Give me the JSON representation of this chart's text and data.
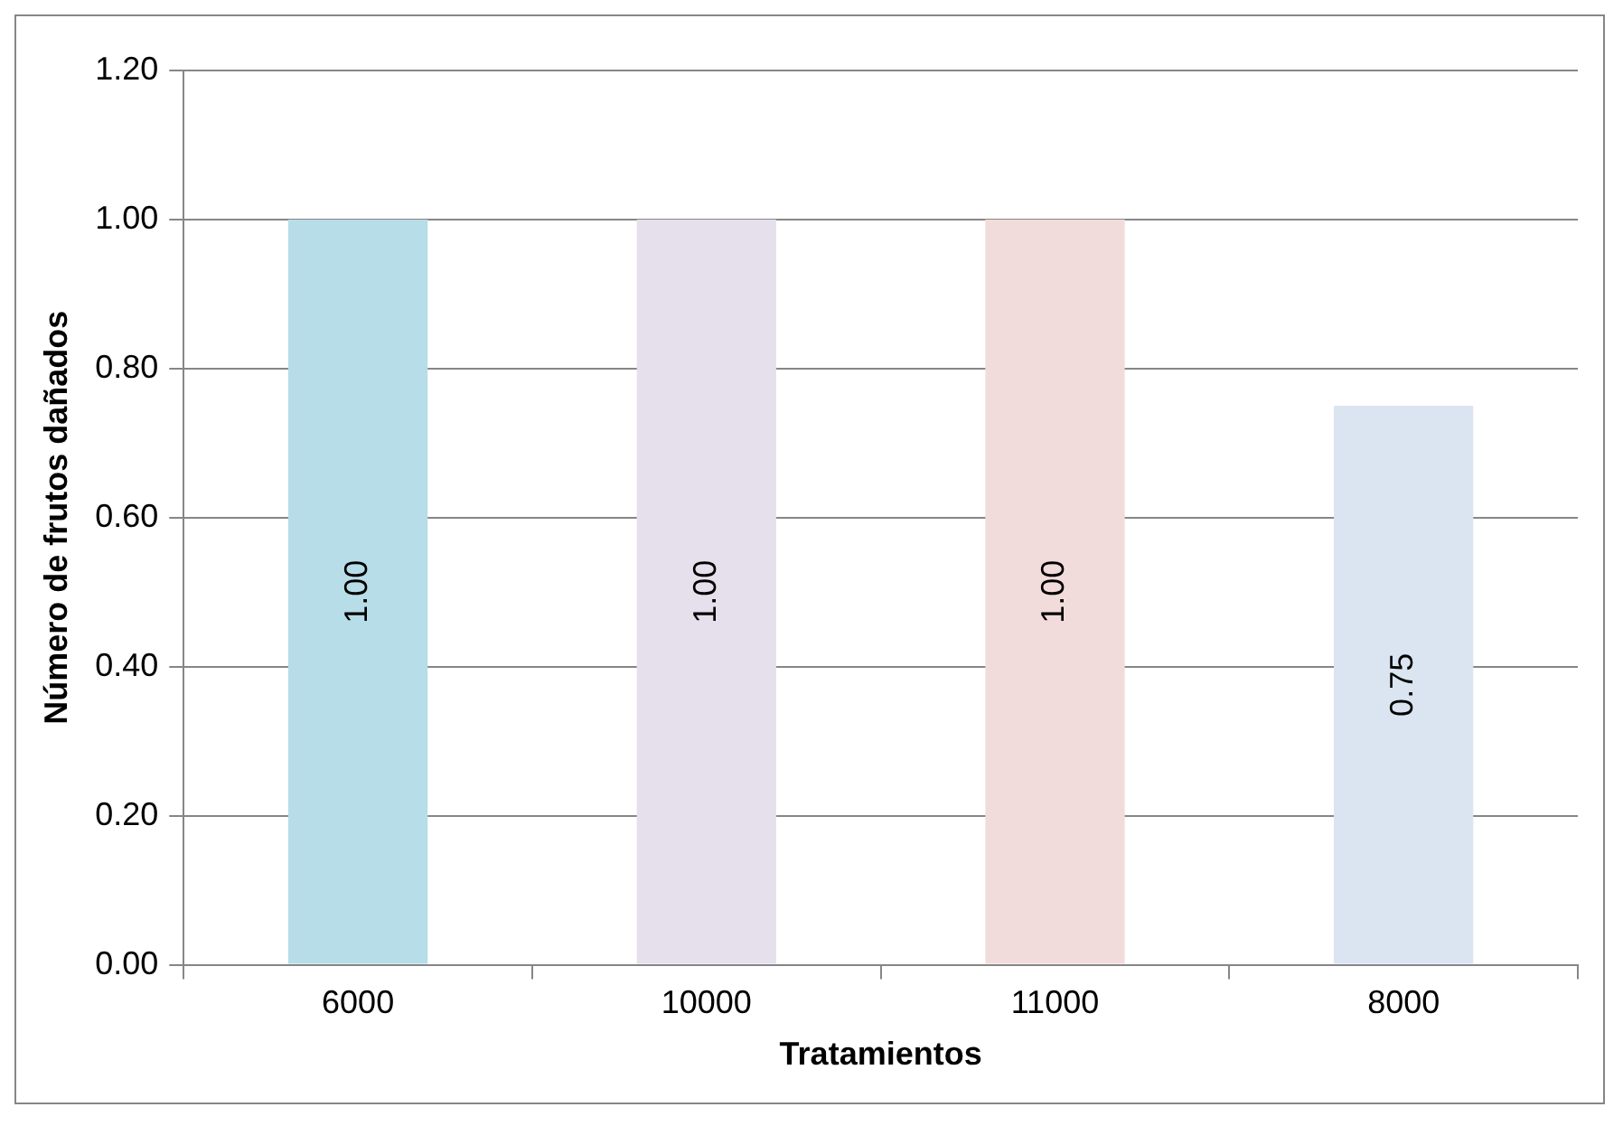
{
  "chart_data": {
    "type": "bar",
    "xlabel": "Tratamientos",
    "ylabel": "Número de frutos dañados",
    "categories": [
      "6000",
      "10000",
      "11000",
      "8000"
    ],
    "values": [
      1.0,
      1.0,
      1.0,
      0.75
    ],
    "colors": [
      "#b7dde8",
      "#e5e0ec",
      "#f2dcdb",
      "#dbe5f1"
    ],
    "value_labels": [
      "1.00",
      "1.00",
      "1.00",
      "0.75"
    ],
    "ylim": [
      0,
      1.2
    ],
    "yticks": [
      {
        "value": 0,
        "label": "0.00"
      },
      {
        "value": 0.2,
        "label": "0.20"
      },
      {
        "value": 0.4,
        "label": "0.40"
      },
      {
        "value": 0.6,
        "label": "0.60"
      },
      {
        "value": 0.8,
        "label": "0.80"
      },
      {
        "value": 1.0,
        "label": "1.00"
      },
      {
        "value": 1.2,
        "label": "1.20"
      }
    ],
    "grid": "y",
    "legend": false
  }
}
